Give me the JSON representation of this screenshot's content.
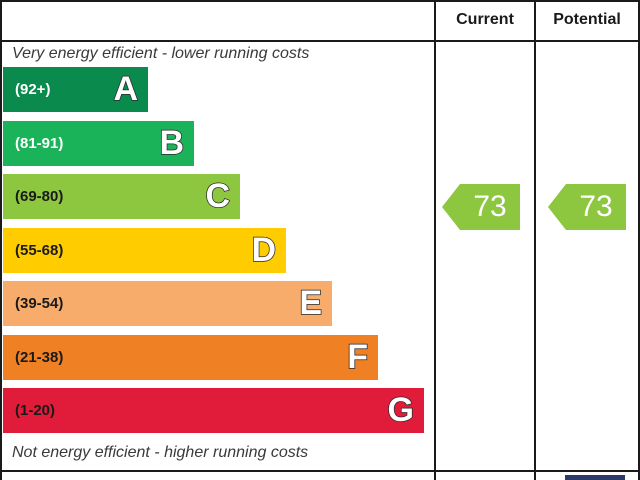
{
  "header": {
    "current": "Current",
    "potential": "Potential"
  },
  "notes": {
    "top": "Very energy efficient - lower running costs",
    "bottom": "Not energy efficient - higher running costs"
  },
  "chart_data": {
    "type": "bar",
    "categories": [
      "A",
      "B",
      "C",
      "D",
      "E",
      "F",
      "G"
    ],
    "ranges": [
      "(92+)",
      "(81-91)",
      "(69-80)",
      "(55-68)",
      "(39-54)",
      "(21-38)",
      "(1-20)"
    ],
    "colors": [
      "#0a8a4c",
      "#1bb35a",
      "#8dc63f",
      "#ffcc00",
      "#f7ac6b",
      "#ef8023",
      "#e11c3a"
    ],
    "current": {
      "value": "73",
      "band": "C",
      "color": "#8dc63f"
    },
    "potential": {
      "value": "73",
      "band": "C",
      "color": "#8dc63f"
    }
  }
}
